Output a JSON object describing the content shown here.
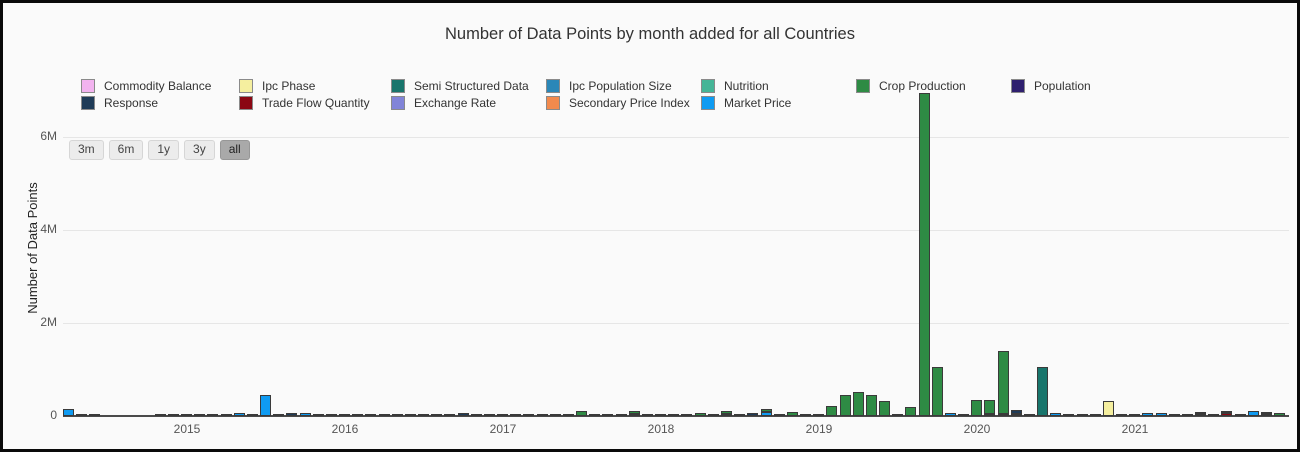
{
  "range_selector": {
    "buttons": [
      "3m",
      "6m",
      "1y",
      "3y",
      "all"
    ],
    "active": "all"
  },
  "chart_data": {
    "type": "bar",
    "stacked": true,
    "title": "Number of Data Points by month added for all Countries",
    "ylabel": "Number of Data Points",
    "ylim": [
      0,
      7200000
    ],
    "grid": true,
    "legend_position": "top",
    "yticks": [
      {
        "label": "0",
        "value": 0
      },
      {
        "label": "2M",
        "value": 2000000
      },
      {
        "label": "4M",
        "value": 4000000
      },
      {
        "label": "6M",
        "value": 6000000
      }
    ],
    "legend": [
      {
        "label": "Commodity Balance",
        "color": "#f2b3ef"
      },
      {
        "label": "Ipc Phase",
        "color": "#f5ef9f"
      },
      {
        "label": "Semi Structured Data",
        "color": "#18756c"
      },
      {
        "label": "Ipc Population Size",
        "color": "#2a87b8"
      },
      {
        "label": "Nutrition",
        "color": "#45b597"
      },
      {
        "label": "Crop Production",
        "color": "#2e8b44"
      },
      {
        "label": "Population",
        "color": "#2e1f6e"
      },
      {
        "label": "Response",
        "color": "#1f3b57"
      },
      {
        "label": "Trade Flow Quantity",
        "color": "#8b0713"
      },
      {
        "label": "Exchange Rate",
        "color": "#8184d8"
      },
      {
        "label": "Secondary Price Index",
        "color": "#f28a4d"
      },
      {
        "label": "Market Price",
        "color": "#0f9bf2"
      }
    ],
    "start_month": "2014-04",
    "year_labels": [
      {
        "label": "2015",
        "month_index": 9
      },
      {
        "label": "2016",
        "month_index": 21
      },
      {
        "label": "2017",
        "month_index": 33
      },
      {
        "label": "2018",
        "month_index": 45
      },
      {
        "label": "2019",
        "month_index": 57
      },
      {
        "label": "2020",
        "month_index": 69
      },
      {
        "label": "2021",
        "month_index": 81
      }
    ],
    "months": [
      {
        "m": "2014-04",
        "parts": [
          [
            "Market Price",
            150000
          ]
        ]
      },
      {
        "m": "2014-05",
        "parts": [
          [
            "Response",
            15000
          ]
        ]
      },
      {
        "m": "2014-06",
        "parts": [
          [
            "Response",
            25000
          ]
        ]
      },
      {
        "m": "2014-07",
        "parts": []
      },
      {
        "m": "2014-08",
        "parts": []
      },
      {
        "m": "2014-09",
        "parts": []
      },
      {
        "m": "2014-10",
        "parts": []
      },
      {
        "m": "2014-11",
        "parts": [
          [
            "Response",
            8000
          ]
        ]
      },
      {
        "m": "2014-12",
        "parts": [
          [
            "Response",
            8000
          ]
        ]
      },
      {
        "m": "2015-01",
        "parts": [
          [
            "Response",
            8000
          ]
        ]
      },
      {
        "m": "2015-02",
        "parts": [
          [
            "Response",
            8000
          ]
        ]
      },
      {
        "m": "2015-03",
        "parts": [
          [
            "Response",
            8000
          ]
        ]
      },
      {
        "m": "2015-04",
        "parts": [
          [
            "Response",
            8000
          ]
        ]
      },
      {
        "m": "2015-05",
        "parts": [
          [
            "Market Price",
            60000
          ]
        ]
      },
      {
        "m": "2015-06",
        "parts": [
          [
            "Response",
            10000
          ]
        ]
      },
      {
        "m": "2015-07",
        "parts": [
          [
            "Market Price",
            450000
          ]
        ]
      },
      {
        "m": "2015-08",
        "parts": [
          [
            "Market Price",
            25000
          ]
        ]
      },
      {
        "m": "2015-09",
        "parts": [
          [
            "Response",
            60000
          ]
        ]
      },
      {
        "m": "2015-10",
        "parts": [
          [
            "Market Price",
            60000
          ]
        ]
      },
      {
        "m": "2015-11",
        "parts": [
          [
            "Response",
            8000
          ]
        ]
      },
      {
        "m": "2015-12",
        "parts": [
          [
            "Response",
            8000
          ]
        ]
      },
      {
        "m": "2016-01",
        "parts": [
          [
            "Response",
            8000
          ]
        ]
      },
      {
        "m": "2016-02",
        "parts": [
          [
            "Response",
            8000
          ]
        ]
      },
      {
        "m": "2016-03",
        "parts": [
          [
            "Response",
            8000
          ]
        ]
      },
      {
        "m": "2016-04",
        "parts": [
          [
            "Response",
            8000
          ]
        ]
      },
      {
        "m": "2016-05",
        "parts": [
          [
            "Response",
            8000
          ]
        ]
      },
      {
        "m": "2016-06",
        "parts": [
          [
            "Response",
            8000
          ]
        ]
      },
      {
        "m": "2016-07",
        "parts": [
          [
            "Response",
            8000
          ]
        ]
      },
      {
        "m": "2016-08",
        "parts": [
          [
            "Market Price",
            35000
          ]
        ]
      },
      {
        "m": "2016-09",
        "parts": [
          [
            "Response",
            10000
          ]
        ]
      },
      {
        "m": "2016-10",
        "parts": [
          [
            "Response",
            70000
          ]
        ]
      },
      {
        "m": "2016-11",
        "parts": [
          [
            "Market Price",
            30000
          ]
        ]
      },
      {
        "m": "2016-12",
        "parts": [
          [
            "Response",
            8000
          ]
        ]
      },
      {
        "m": "2017-01",
        "parts": [
          [
            "Response",
            8000
          ]
        ]
      },
      {
        "m": "2017-02",
        "parts": [
          [
            "Response",
            8000
          ]
        ]
      },
      {
        "m": "2017-03",
        "parts": [
          [
            "Response",
            8000
          ]
        ]
      },
      {
        "m": "2017-04",
        "parts": [
          [
            "Response",
            25000
          ]
        ]
      },
      {
        "m": "2017-05",
        "parts": [
          [
            "Response",
            8000
          ]
        ]
      },
      {
        "m": "2017-06",
        "parts": [
          [
            "Response",
            8000
          ]
        ]
      },
      {
        "m": "2017-07",
        "parts": [
          [
            "Crop Production",
            110000
          ]
        ]
      },
      {
        "m": "2017-08",
        "parts": [
          [
            "Crop Production",
            45000
          ]
        ]
      },
      {
        "m": "2017-09",
        "parts": [
          [
            "Response",
            8000
          ]
        ]
      },
      {
        "m": "2017-10",
        "parts": [
          [
            "Response",
            8000
          ]
        ]
      },
      {
        "m": "2017-11",
        "parts": [
          [
            "Market Price",
            15000
          ],
          [
            "Crop Production",
            70000
          ]
        ]
      },
      {
        "m": "2017-12",
        "parts": [
          [
            "Response",
            30000
          ]
        ]
      },
      {
        "m": "2018-01",
        "parts": [
          [
            "Response",
            8000
          ]
        ]
      },
      {
        "m": "2018-02",
        "parts": [
          [
            "Market Price",
            35000
          ]
        ]
      },
      {
        "m": "2018-03",
        "parts": [
          [
            "Response",
            8000
          ]
        ]
      },
      {
        "m": "2018-04",
        "parts": [
          [
            "Crop Production",
            60000
          ]
        ]
      },
      {
        "m": "2018-05",
        "parts": [
          [
            "Response",
            8000
          ]
        ]
      },
      {
        "m": "2018-06",
        "parts": [
          [
            "Market Price",
            40000
          ],
          [
            "Crop Production",
            60000
          ]
        ]
      },
      {
        "m": "2018-07",
        "parts": [
          [
            "Response",
            15000
          ]
        ]
      },
      {
        "m": "2018-08",
        "parts": [
          [
            "Response",
            70000
          ]
        ]
      },
      {
        "m": "2018-09",
        "parts": [
          [
            "Market Price",
            80000
          ],
          [
            "Crop Production",
            55000
          ]
        ]
      },
      {
        "m": "2018-10",
        "parts": [
          [
            "Market Price",
            45000
          ]
        ]
      },
      {
        "m": "2018-11",
        "parts": [
          [
            "Crop Production",
            85000
          ]
        ]
      },
      {
        "m": "2018-12",
        "parts": [
          [
            "Response",
            20000
          ]
        ]
      },
      {
        "m": "2019-01",
        "parts": [
          [
            "Response",
            30000
          ]
        ]
      },
      {
        "m": "2019-02",
        "parts": [
          [
            "Crop Production",
            210000
          ]
        ]
      },
      {
        "m": "2019-03",
        "parts": [
          [
            "Crop Production",
            460000
          ]
        ]
      },
      {
        "m": "2019-04",
        "parts": [
          [
            "Crop Production",
            520000
          ]
        ]
      },
      {
        "m": "2019-05",
        "parts": [
          [
            "Crop Production",
            450000
          ]
        ]
      },
      {
        "m": "2019-06",
        "parts": [
          [
            "Crop Production",
            330000
          ]
        ]
      },
      {
        "m": "2019-07",
        "parts": [
          [
            "Response",
            30000
          ]
        ]
      },
      {
        "m": "2019-08",
        "parts": [
          [
            "Crop Production",
            200000
          ]
        ]
      },
      {
        "m": "2019-09",
        "parts": [
          [
            "Crop Production",
            6950000
          ]
        ]
      },
      {
        "m": "2019-10",
        "parts": [
          [
            "Crop Production",
            1050000
          ]
        ]
      },
      {
        "m": "2019-11",
        "parts": [
          [
            "Market Price",
            60000
          ]
        ]
      },
      {
        "m": "2019-12",
        "parts": [
          [
            "Response",
            20000
          ]
        ]
      },
      {
        "m": "2020-01",
        "parts": [
          [
            "Crop Production",
            340000
          ]
        ]
      },
      {
        "m": "2020-02",
        "parts": [
          [
            "Market Price",
            30000
          ],
          [
            "Crop Production",
            300000
          ]
        ]
      },
      {
        "m": "2020-03",
        "parts": [
          [
            "Market Price",
            40000
          ],
          [
            "Crop Production",
            1350000
          ]
        ]
      },
      {
        "m": "2020-04",
        "parts": [
          [
            "Market Price",
            20000
          ],
          [
            "Response",
            80000
          ]
        ]
      },
      {
        "m": "2020-05",
        "parts": [
          [
            "Response",
            40000
          ]
        ]
      },
      {
        "m": "2020-06",
        "parts": [
          [
            "Semi Structured Data",
            1050000
          ]
        ]
      },
      {
        "m": "2020-07",
        "parts": [
          [
            "Market Price",
            60000
          ]
        ]
      },
      {
        "m": "2020-08",
        "parts": [
          [
            "Market Price",
            25000
          ]
        ]
      },
      {
        "m": "2020-09",
        "parts": [
          [
            "Market Price",
            45000
          ]
        ]
      },
      {
        "m": "2020-10",
        "parts": [
          [
            "Market Price",
            30000
          ]
        ]
      },
      {
        "m": "2020-11",
        "parts": [
          [
            "Ipc Phase",
            330000
          ]
        ]
      },
      {
        "m": "2020-12",
        "parts": [
          [
            "Response",
            35000
          ]
        ]
      },
      {
        "m": "2021-01",
        "parts": [
          [
            "Response",
            30000
          ]
        ]
      },
      {
        "m": "2021-02",
        "parts": [
          [
            "Market Price",
            60000
          ]
        ]
      },
      {
        "m": "2021-03",
        "parts": [
          [
            "Market Price",
            70000
          ]
        ]
      },
      {
        "m": "2021-04",
        "parts": [
          [
            "Market Price",
            30000
          ]
        ]
      },
      {
        "m": "2021-05",
        "parts": [
          [
            "Ipc Phase",
            40000
          ]
        ]
      },
      {
        "m": "2021-06",
        "parts": [
          [
            "Market Price",
            50000
          ],
          [
            "Trade Flow Quantity",
            30000
          ]
        ]
      },
      {
        "m": "2021-07",
        "parts": [
          [
            "Market Price",
            45000
          ]
        ]
      },
      {
        "m": "2021-08",
        "parts": [
          [
            "Trade Flow Quantity",
            55000
          ],
          [
            "Ipc Phase",
            30000
          ]
        ]
      },
      {
        "m": "2021-09",
        "parts": [
          [
            "Market Price",
            45000
          ]
        ]
      },
      {
        "m": "2021-10",
        "parts": [
          [
            "Market Price",
            110000
          ]
        ]
      },
      {
        "m": "2021-11",
        "parts": [
          [
            "Market Price",
            35000
          ],
          [
            "Response",
            15000
          ]
        ]
      },
      {
        "m": "2021-12",
        "parts": [
          [
            "Crop Production",
            60000
          ]
        ]
      }
    ]
  }
}
